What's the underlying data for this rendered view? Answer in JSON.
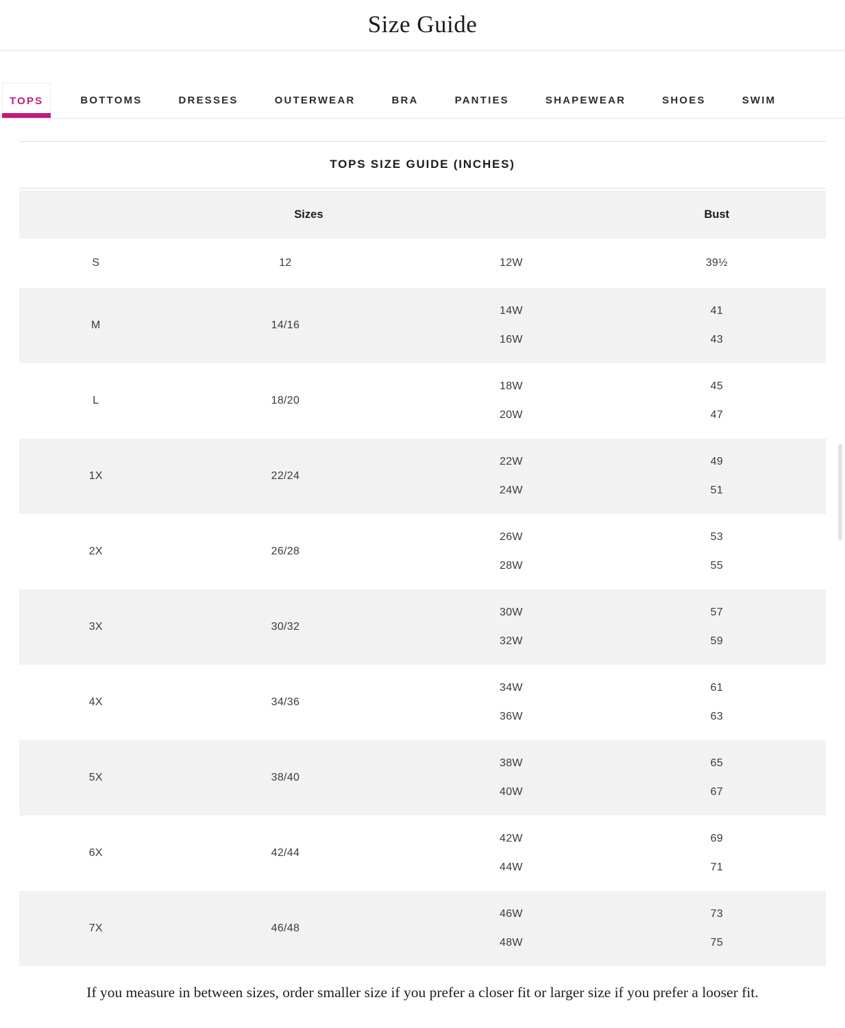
{
  "page": {
    "title": "Size Guide"
  },
  "tabs": [
    {
      "label": "TOPS",
      "active": true
    },
    {
      "label": "BOTTOMS",
      "active": false
    },
    {
      "label": "DRESSES",
      "active": false
    },
    {
      "label": "OUTERWEAR",
      "active": false
    },
    {
      "label": "BRA",
      "active": false
    },
    {
      "label": "PANTIES",
      "active": false
    },
    {
      "label": "SHAPEWEAR",
      "active": false
    },
    {
      "label": "SHOES",
      "active": false
    },
    {
      "label": "SWIM",
      "active": false
    }
  ],
  "section": {
    "title": "TOPS SIZE GUIDE (INCHES)"
  },
  "table": {
    "headers": {
      "sizes": "Sizes",
      "bust": "Bust"
    },
    "rows": [
      {
        "size": "S",
        "range": "12",
        "entries": [
          {
            "w": "12W",
            "bust": "39½"
          }
        ]
      },
      {
        "size": "M",
        "range": "14/16",
        "entries": [
          {
            "w": "14W",
            "bust": "41"
          },
          {
            "w": "16W",
            "bust": "43"
          }
        ]
      },
      {
        "size": "L",
        "range": "18/20",
        "entries": [
          {
            "w": "18W",
            "bust": "45"
          },
          {
            "w": "20W",
            "bust": "47"
          }
        ]
      },
      {
        "size": "1X",
        "range": "22/24",
        "entries": [
          {
            "w": "22W",
            "bust": "49"
          },
          {
            "w": "24W",
            "bust": "51"
          }
        ]
      },
      {
        "size": "2X",
        "range": "26/28",
        "entries": [
          {
            "w": "26W",
            "bust": "53"
          },
          {
            "w": "28W",
            "bust": "55"
          }
        ]
      },
      {
        "size": "3X",
        "range": "30/32",
        "entries": [
          {
            "w": "30W",
            "bust": "57"
          },
          {
            "w": "32W",
            "bust": "59"
          }
        ]
      },
      {
        "size": "4X",
        "range": "34/36",
        "entries": [
          {
            "w": "34W",
            "bust": "61"
          },
          {
            "w": "36W",
            "bust": "63"
          }
        ]
      },
      {
        "size": "5X",
        "range": "38/40",
        "entries": [
          {
            "w": "38W",
            "bust": "65"
          },
          {
            "w": "40W",
            "bust": "67"
          }
        ]
      },
      {
        "size": "6X",
        "range": "42/44",
        "entries": [
          {
            "w": "42W",
            "bust": "69"
          },
          {
            "w": "44W",
            "bust": "71"
          }
        ]
      },
      {
        "size": "7X",
        "range": "46/48",
        "entries": [
          {
            "w": "46W",
            "bust": "73"
          },
          {
            "w": "48W",
            "bust": "75"
          }
        ]
      }
    ]
  },
  "note": "If you measure in between sizes, order smaller size if you prefer a closer fit or larger size if you prefer a looser fit.",
  "colors": {
    "accent": "#c3197d",
    "row_alt": "#f2f2f2",
    "divider": "#e3e3e3"
  }
}
